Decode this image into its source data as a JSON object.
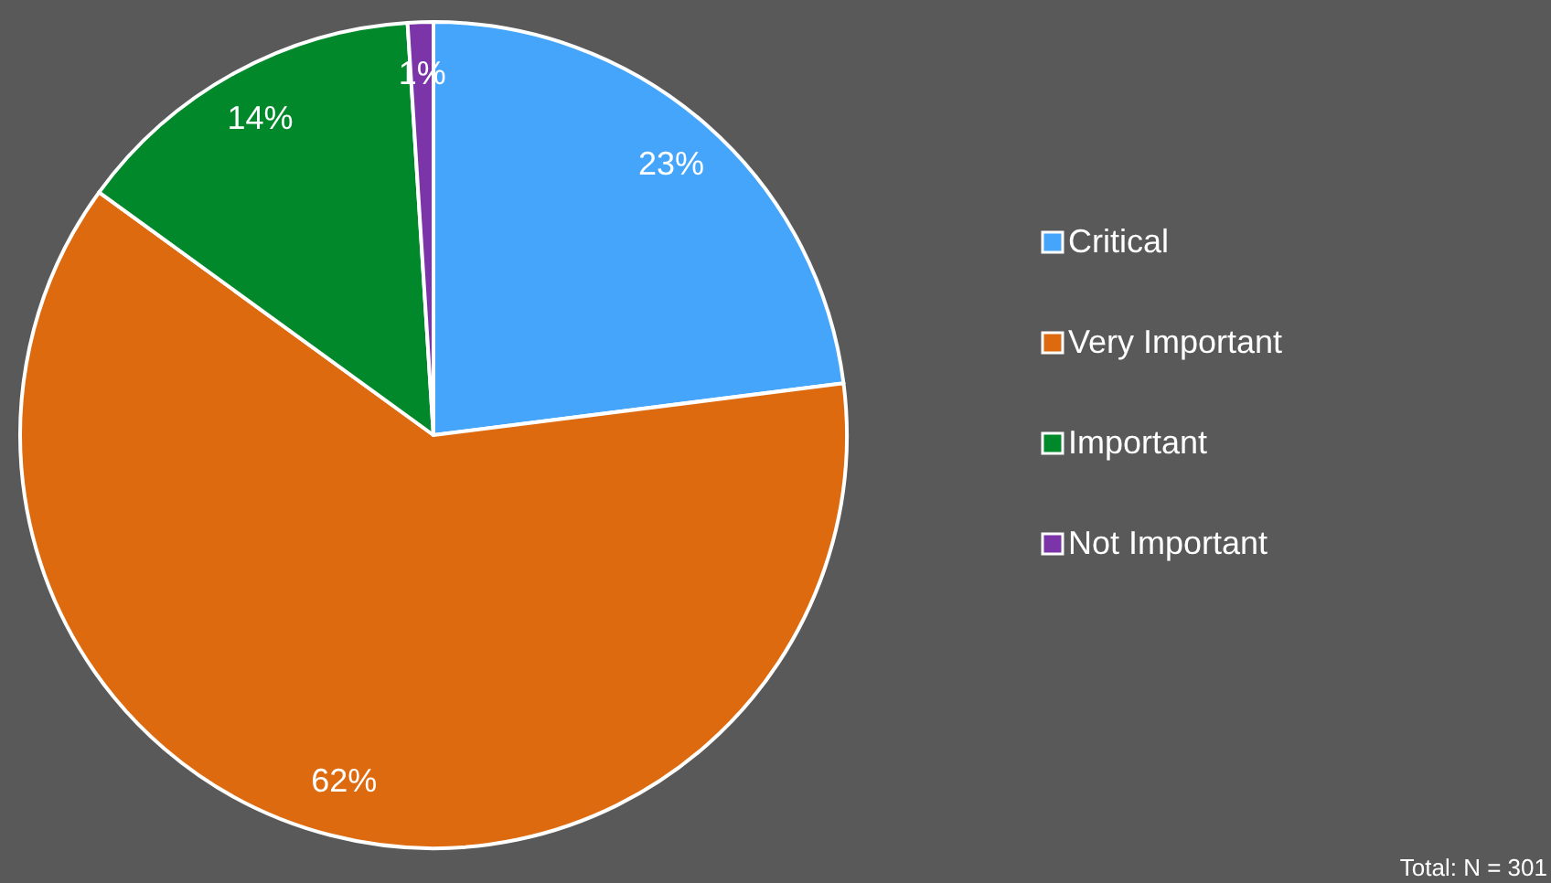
{
  "chart_data": {
    "type": "pie",
    "categories": [
      "Critical",
      "Very Important",
      "Important",
      "Not Important"
    ],
    "values": [
      23,
      62,
      14,
      1
    ],
    "colors": [
      "#45a5fb",
      "#dd6a0e",
      "#00882b",
      "#7b35a8"
    ],
    "value_labels": [
      "23%",
      "62%",
      "14%",
      "1%"
    ],
    "legend": "right",
    "annotations": [
      "Total: N = 301"
    ]
  }
}
